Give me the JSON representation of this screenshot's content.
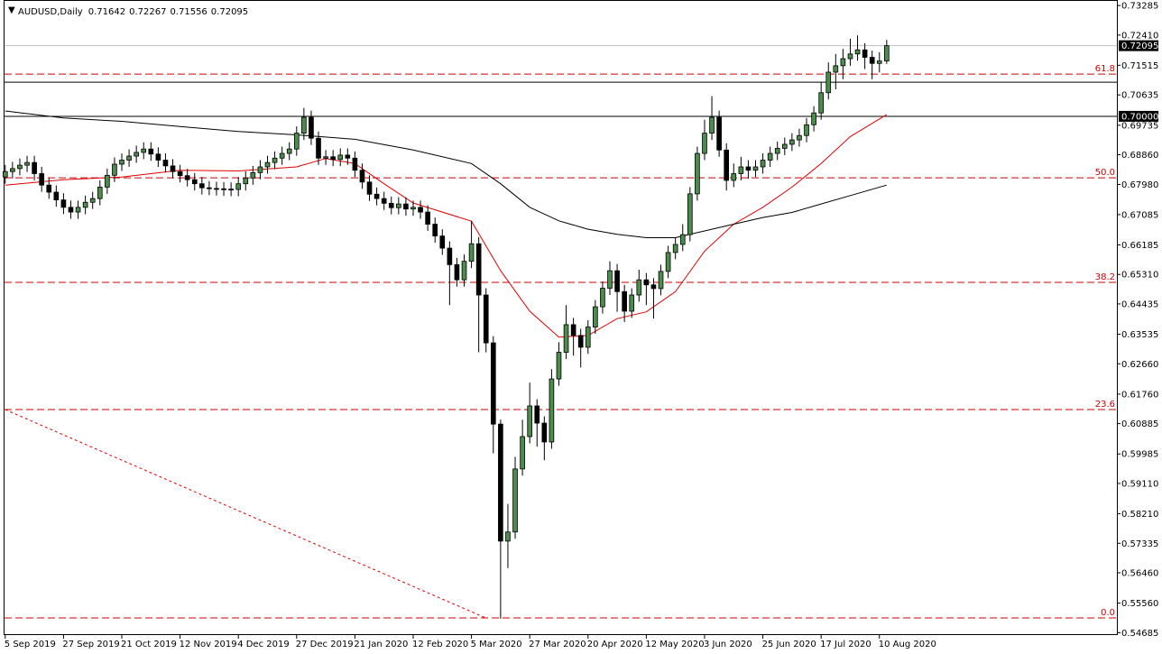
{
  "chart_data": {
    "type": "candlestick",
    "symbol": "AUDUSD,Daily",
    "bull_color": "#4c8c4c",
    "bear_color": "#000000",
    "ylim": [
      0.5464,
      0.7345
    ],
    "xlim": [
      -0.1,
      152.6
    ],
    "yticks": [
      {
        "value": 0.73285,
        "label": "0.73285"
      },
      {
        "value": 0.7241,
        "label": "0.72410"
      },
      {
        "value": 0.71515,
        "label": "0.71515"
      },
      {
        "value": 0.70635,
        "label": "0.70635"
      },
      {
        "value": 0.69735,
        "label": "0.69735"
      },
      {
        "value": 0.6886,
        "label": "0.68860"
      },
      {
        "value": 0.6798,
        "label": "0.67980"
      },
      {
        "value": 0.67085,
        "label": "0.67085"
      },
      {
        "value": 0.66185,
        "label": "0.66185"
      },
      {
        "value": 0.6531,
        "label": "0.65310"
      },
      {
        "value": 0.64435,
        "label": "0.64435"
      },
      {
        "value": 0.63535,
        "label": "0.63535"
      },
      {
        "value": 0.6266,
        "label": "0.62660"
      },
      {
        "value": 0.6176,
        "label": "0.61760"
      },
      {
        "value": 0.60885,
        "label": "0.60885"
      },
      {
        "value": 0.59985,
        "label": "0.59985"
      },
      {
        "value": 0.5911,
        "label": "0.59110"
      },
      {
        "value": 0.5821,
        "label": "0.58210"
      },
      {
        "value": 0.57335,
        "label": "0.57335"
      },
      {
        "value": 0.5646,
        "label": "0.56460"
      },
      {
        "value": 0.5556,
        "label": "0.55560"
      },
      {
        "value": 0.54685,
        "label": "0.54685"
      }
    ],
    "xticks": [
      {
        "value": 0,
        "label": "5 Sep 2019"
      },
      {
        "value": 8,
        "label": "27 Sep 2019"
      },
      {
        "value": 16,
        "label": "21 Oct 2019"
      },
      {
        "value": 24,
        "label": "12 Nov 2019"
      },
      {
        "value": 32,
        "label": "4 Dec 2019"
      },
      {
        "value": 40,
        "label": "27 Dec 2019"
      },
      {
        "value": 48,
        "label": "21 Jan 2020"
      },
      {
        "value": 56,
        "label": "12 Feb 2020"
      },
      {
        "value": 64,
        "label": "5 Mar 2020"
      },
      {
        "value": 72,
        "label": "27 Mar 2020"
      },
      {
        "value": 80,
        "label": "20 Apr 2020"
      },
      {
        "value": 88,
        "label": "12 May 2020"
      },
      {
        "value": 96,
        "label": "3 Jun 2020"
      },
      {
        "value": 104,
        "label": "25 Jun 2020"
      },
      {
        "value": 112,
        "label": "17 Jul 2020"
      },
      {
        "value": 120,
        "label": "10 Aug 2020"
      }
    ],
    "candles": [
      [
        0.682,
        0.6856,
        0.68,
        0.6836
      ],
      [
        0.6836,
        0.6865,
        0.6816,
        0.6845
      ],
      [
        0.6845,
        0.6875,
        0.6825,
        0.6855
      ],
      [
        0.6855,
        0.6883,
        0.6835,
        0.6863
      ],
      [
        0.6863,
        0.6883,
        0.681,
        0.683
      ],
      [
        0.683,
        0.685,
        0.6776,
        0.6796
      ],
      [
        0.6796,
        0.6816,
        0.6755,
        0.6775
      ],
      [
        0.6775,
        0.6795,
        0.6732,
        0.6752
      ],
      [
        0.6752,
        0.6772,
        0.671,
        0.673
      ],
      [
        0.673,
        0.675,
        0.6696,
        0.6716
      ],
      [
        0.6716,
        0.675,
        0.6696,
        0.673
      ],
      [
        0.673,
        0.6765,
        0.671,
        0.6745
      ],
      [
        0.6745,
        0.6776,
        0.6725,
        0.6756
      ],
      [
        0.6756,
        0.681,
        0.6736,
        0.679
      ],
      [
        0.679,
        0.6845,
        0.677,
        0.6825
      ],
      [
        0.6825,
        0.6878,
        0.6805,
        0.6858
      ],
      [
        0.6858,
        0.689,
        0.6838,
        0.687
      ],
      [
        0.687,
        0.6902,
        0.685,
        0.6882
      ],
      [
        0.6882,
        0.6913,
        0.6862,
        0.6893
      ],
      [
        0.6893,
        0.6923,
        0.6873,
        0.6903
      ],
      [
        0.6903,
        0.6923,
        0.6868,
        0.6888
      ],
      [
        0.6888,
        0.6908,
        0.685,
        0.687
      ],
      [
        0.687,
        0.689,
        0.6833,
        0.6853
      ],
      [
        0.6853,
        0.6873,
        0.6816,
        0.6836
      ],
      [
        0.6836,
        0.6856,
        0.6804,
        0.6824
      ],
      [
        0.6824,
        0.6844,
        0.6792,
        0.6812
      ],
      [
        0.6812,
        0.6832,
        0.678,
        0.68
      ],
      [
        0.68,
        0.682,
        0.6768,
        0.6788
      ],
      [
        0.6788,
        0.6808,
        0.6766,
        0.6786
      ],
      [
        0.6786,
        0.6806,
        0.6765,
        0.6785
      ],
      [
        0.6785,
        0.6805,
        0.6764,
        0.6784
      ],
      [
        0.6784,
        0.6804,
        0.6763,
        0.6783
      ],
      [
        0.6783,
        0.682,
        0.6763,
        0.68
      ],
      [
        0.68,
        0.6837,
        0.678,
        0.6817
      ],
      [
        0.6817,
        0.6853,
        0.6797,
        0.6833
      ],
      [
        0.6833,
        0.687,
        0.6813,
        0.685
      ],
      [
        0.685,
        0.6883,
        0.683,
        0.6863
      ],
      [
        0.6863,
        0.6896,
        0.6843,
        0.6876
      ],
      [
        0.6876,
        0.691,
        0.6856,
        0.689
      ],
      [
        0.689,
        0.6923,
        0.687,
        0.6903
      ],
      [
        0.6903,
        0.697,
        0.6883,
        0.695
      ],
      [
        0.695,
        0.7025,
        0.693,
        0.6997
      ],
      [
        0.6997,
        0.7017,
        0.6915,
        0.6935
      ],
      [
        0.6935,
        0.6955,
        0.6856,
        0.6876
      ],
      [
        0.6876,
        0.69,
        0.6856,
        0.688
      ],
      [
        0.688,
        0.69,
        0.6852,
        0.6872
      ],
      [
        0.6872,
        0.6905,
        0.6852,
        0.6885
      ],
      [
        0.6885,
        0.6905,
        0.6856,
        0.6876
      ],
      [
        0.6876,
        0.6896,
        0.682,
        0.684
      ],
      [
        0.684,
        0.686,
        0.6785,
        0.6805
      ],
      [
        0.6805,
        0.6825,
        0.6749,
        0.6769
      ],
      [
        0.6769,
        0.6789,
        0.6736,
        0.6756
      ],
      [
        0.6756,
        0.6776,
        0.6722,
        0.6742
      ],
      [
        0.6742,
        0.6762,
        0.6709,
        0.6729
      ],
      [
        0.6729,
        0.676,
        0.6709,
        0.674
      ],
      [
        0.674,
        0.676,
        0.6705,
        0.6725
      ],
      [
        0.6725,
        0.675,
        0.6705,
        0.673
      ],
      [
        0.673,
        0.675,
        0.6696,
        0.6716
      ],
      [
        0.6716,
        0.6736,
        0.666,
        0.668
      ],
      [
        0.668,
        0.67,
        0.6625,
        0.6645
      ],
      [
        0.6645,
        0.6665,
        0.6589,
        0.6609
      ],
      [
        0.6609,
        0.6629,
        0.644,
        0.656
      ],
      [
        0.656,
        0.658,
        0.6495,
        0.6515
      ],
      [
        0.6515,
        0.659,
        0.6495,
        0.657
      ],
      [
        0.657,
        0.669,
        0.655,
        0.6622
      ],
      [
        0.6622,
        0.6642,
        0.63,
        0.647
      ],
      [
        0.647,
        0.649,
        0.63,
        0.6328
      ],
      [
        0.6328,
        0.6348,
        0.6,
        0.6087
      ],
      [
        0.6087,
        0.61,
        0.551,
        0.574
      ],
      [
        0.574,
        0.585,
        0.566,
        0.5767
      ],
      [
        0.5767,
        0.599,
        0.5747,
        0.5954
      ],
      [
        0.5954,
        0.61,
        0.5934,
        0.605
      ],
      [
        0.605,
        0.621,
        0.603,
        0.6141
      ],
      [
        0.6141,
        0.6161,
        0.602,
        0.609
      ],
      [
        0.609,
        0.611,
        0.598,
        0.6034
      ],
      [
        0.6034,
        0.625,
        0.6014,
        0.6221
      ],
      [
        0.6221,
        0.633,
        0.6201,
        0.63
      ],
      [
        0.63,
        0.644,
        0.628,
        0.6382
      ],
      [
        0.6382,
        0.6402,
        0.629,
        0.635
      ],
      [
        0.635,
        0.637,
        0.6255,
        0.6315
      ],
      [
        0.6315,
        0.6395,
        0.6295,
        0.6375
      ],
      [
        0.6375,
        0.6455,
        0.6355,
        0.6435
      ],
      [
        0.6435,
        0.651,
        0.6415,
        0.649
      ],
      [
        0.649,
        0.657,
        0.647,
        0.6542
      ],
      [
        0.6542,
        0.6562,
        0.642,
        0.648
      ],
      [
        0.648,
        0.65,
        0.639,
        0.6422
      ],
      [
        0.6422,
        0.649,
        0.6402,
        0.647
      ],
      [
        0.647,
        0.6545,
        0.645,
        0.6515
      ],
      [
        0.6515,
        0.6535,
        0.644,
        0.65
      ],
      [
        0.65,
        0.652,
        0.64,
        0.6489
      ],
      [
        0.6489,
        0.656,
        0.6469,
        0.654
      ],
      [
        0.654,
        0.6616,
        0.652,
        0.6596
      ],
      [
        0.6596,
        0.664,
        0.6576,
        0.662
      ],
      [
        0.662,
        0.668,
        0.66,
        0.6649
      ],
      [
        0.6649,
        0.679,
        0.6629,
        0.677
      ],
      [
        0.677,
        0.691,
        0.675,
        0.689
      ],
      [
        0.689,
        0.699,
        0.687,
        0.695
      ],
      [
        0.695,
        0.706,
        0.693,
        0.6997
      ],
      [
        0.6997,
        0.7017,
        0.688,
        0.69
      ],
      [
        0.69,
        0.692,
        0.678,
        0.681
      ],
      [
        0.681,
        0.686,
        0.679,
        0.683
      ],
      [
        0.683,
        0.688,
        0.681,
        0.685
      ],
      [
        0.685,
        0.687,
        0.6815,
        0.684
      ],
      [
        0.684,
        0.687,
        0.682,
        0.685
      ],
      [
        0.685,
        0.689,
        0.683,
        0.687
      ],
      [
        0.687,
        0.691,
        0.685,
        0.689
      ],
      [
        0.689,
        0.6925,
        0.687,
        0.6905
      ],
      [
        0.6905,
        0.6937,
        0.6885,
        0.6917
      ],
      [
        0.6917,
        0.695,
        0.6897,
        0.693
      ],
      [
        0.693,
        0.6963,
        0.691,
        0.6943
      ],
      [
        0.6943,
        0.6995,
        0.6923,
        0.6975
      ],
      [
        0.6975,
        0.703,
        0.6955,
        0.701
      ],
      [
        0.701,
        0.71,
        0.699,
        0.707
      ],
      [
        0.707,
        0.716,
        0.705,
        0.7131
      ],
      [
        0.7131,
        0.7185,
        0.708,
        0.715
      ],
      [
        0.715,
        0.72,
        0.711,
        0.7171
      ],
      [
        0.7171,
        0.723,
        0.715,
        0.7185
      ],
      [
        0.7185,
        0.724,
        0.7165,
        0.7197
      ],
      [
        0.7197,
        0.7217,
        0.714,
        0.7175
      ],
      [
        0.7175,
        0.7195,
        0.711,
        0.7157
      ],
      [
        0.7157,
        0.719,
        0.713,
        0.71642
      ],
      [
        0.71642,
        0.72267,
        0.71556,
        0.72095
      ]
    ],
    "moving_averages": [
      {
        "color": "#e00000",
        "x": [
          0,
          8,
          16,
          24,
          32,
          40,
          44,
          48,
          52,
          56,
          64,
          68,
          72,
          76,
          80,
          84,
          88,
          92,
          96,
          100,
          104,
          108,
          112,
          116,
          121
        ],
        "values": [
          0.6796,
          0.6812,
          0.682,
          0.684,
          0.6838,
          0.685,
          0.6875,
          0.686,
          0.68,
          0.6743,
          0.6689,
          0.6542,
          0.6422,
          0.6345,
          0.635,
          0.64,
          0.642,
          0.648,
          0.66,
          0.668,
          0.673,
          0.679,
          0.686,
          0.694,
          0.7005
        ]
      },
      {
        "color": "#000000",
        "x": [
          0,
          8,
          16,
          24,
          32,
          40,
          48,
          56,
          64,
          68,
          72,
          76,
          80,
          84,
          88,
          92,
          96,
          100,
          104,
          108,
          112,
          116,
          121
        ],
        "values": [
          0.7016,
          0.6995,
          0.6985,
          0.697,
          0.6955,
          0.6945,
          0.6932,
          0.69,
          0.686,
          0.68,
          0.673,
          0.669,
          0.6665,
          0.665,
          0.664,
          0.664,
          0.666,
          0.668,
          0.67,
          0.6715,
          0.674,
          0.6765,
          0.6796
        ]
      }
    ],
    "trendline": {
      "color": "#e00000",
      "x": [
        0,
        66
      ],
      "values": [
        0.613,
        0.5512
      ]
    },
    "fib_color": "#d00000",
    "fib_levels": [
      {
        "price": 0.71252,
        "label": "61.8"
      },
      {
        "price": 0.68176,
        "label": "50.0"
      },
      {
        "price": 0.65074,
        "label": "38.2"
      },
      {
        "price": 0.61302,
        "label": "23.6"
      },
      {
        "price": 0.55123,
        "label": "0.0"
      }
    ],
    "hlines": [
      {
        "value": 0.71011
      },
      {
        "value": 0.7,
        "label": "0.70000"
      }
    ]
  }
}
